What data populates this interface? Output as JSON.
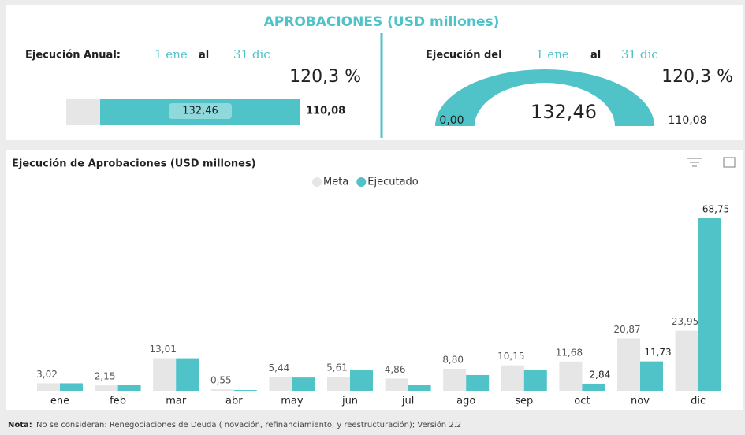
{
  "header": {
    "title": "APROBACIONES (USD millones)"
  },
  "annual": {
    "label": "Ejecución Anual:",
    "from": "1 ene",
    "sep": "al",
    "to": "31 dic",
    "percent": "120,3 %",
    "executed": "132,46",
    "target": "110,08"
  },
  "period": {
    "label": "Ejecución del",
    "from": "1 ene",
    "sep": "al",
    "to": "31 dic",
    "percent": "120,3 %",
    "min": "0,00",
    "executed": "132,46",
    "target": "110,08"
  },
  "chart_data": {
    "type": "bar",
    "title": "Ejecución de Aprobaciones (USD millones)",
    "categories": [
      "ene",
      "feb",
      "mar",
      "abr",
      "may",
      "jun",
      "jul",
      "ago",
      "sep",
      "oct",
      "nov",
      "dic"
    ],
    "series": [
      {
        "name": "Meta",
        "color": "#e6e6e6",
        "values": [
          3.02,
          2.15,
          13.01,
          0.55,
          5.44,
          5.61,
          4.86,
          8.8,
          10.15,
          11.68,
          20.87,
          23.95
        ],
        "value_labels": [
          "3,02",
          "2,15",
          "13,01",
          "0,55",
          "5,44",
          "5,61",
          "4,86",
          "8,80",
          "10,15",
          "11,68",
          "20,87",
          "23,95"
        ]
      },
      {
        "name": "Ejecutado",
        "color": "#4fc3c8",
        "values": [
          3.0,
          2.2,
          13.0,
          0.3,
          5.3,
          8.2,
          2.2,
          6.3,
          8.2,
          2.84,
          11.73,
          68.75
        ],
        "value_labels": [
          null,
          null,
          null,
          null,
          null,
          null,
          null,
          null,
          null,
          "2,84",
          "11,73",
          "68,75"
        ]
      }
    ],
    "legend": "top"
  },
  "note": {
    "label": "Nota:",
    "text": "No se consideran: Renegociaciones de Deuda ( novación, refinanciamiento, y reestructuración); Versión 2.2"
  }
}
